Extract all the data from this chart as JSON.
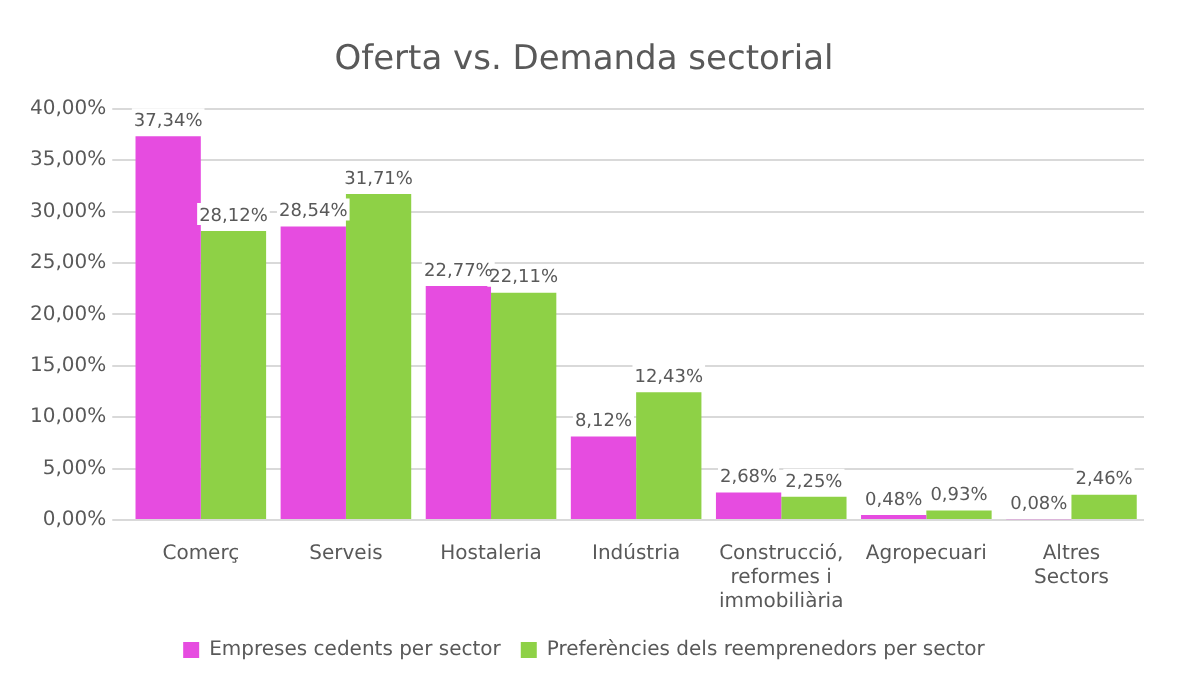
{
  "chart_data": {
    "type": "bar",
    "title": "Oferta vs. Demanda sectorial",
    "categories": [
      "Comerç",
      "Serveis",
      "Hostaleria",
      "Indústria",
      "Construcció, reformes i immobiliària",
      "Agropecuari",
      "Altres Sectors"
    ],
    "series": [
      {
        "name": "Empreses cedents per sector",
        "color": "#e64ce0",
        "values": [
          37.34,
          28.54,
          22.77,
          8.12,
          2.68,
          0.48,
          0.08
        ],
        "value_labels": [
          "37,34%",
          "28,54%",
          "22,77%",
          "8,12%",
          "2,68%",
          "0,48%",
          "0,08%"
        ]
      },
      {
        "name": "Preferències dels reemprenedors per sector",
        "color": "#8ed146",
        "values": [
          28.12,
          31.71,
          22.11,
          12.43,
          2.25,
          0.93,
          2.46
        ],
        "value_labels": [
          "28,12%",
          "31,71%",
          "22,11%",
          "12,43%",
          "2,25%",
          "0,93%",
          "2,46%"
        ]
      }
    ],
    "ylim": [
      0,
      40
    ],
    "yticks": [
      {
        "value": 0,
        "label": "0,00%"
      },
      {
        "value": 5,
        "label": "5,00%"
      },
      {
        "value": 10,
        "label": "10,00%"
      },
      {
        "value": 15,
        "label": "15,00%"
      },
      {
        "value": 20,
        "label": "20,00%"
      },
      {
        "value": 25,
        "label": "25,00%"
      },
      {
        "value": 30,
        "label": "30,00%"
      },
      {
        "value": 35,
        "label": "35,00%"
      },
      {
        "value": 40,
        "label": "40,00%"
      }
    ],
    "grid": "y",
    "legend": "bottom"
  }
}
